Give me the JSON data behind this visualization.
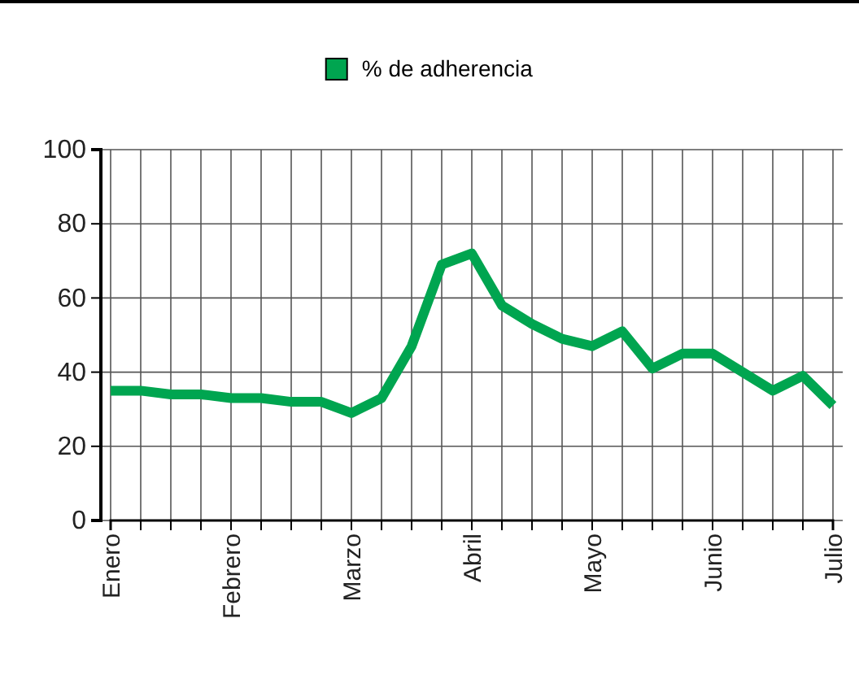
{
  "chart_data": {
    "type": "line",
    "categories": [
      "Enero",
      null,
      null,
      null,
      "Febrero",
      null,
      null,
      null,
      "Marzo",
      null,
      null,
      null,
      "Abril",
      null,
      null,
      null,
      "Mayo",
      null,
      null,
      null,
      "Junio",
      null,
      null,
      null,
      "Julio"
    ],
    "series": [
      {
        "name": "% de adherencia",
        "color": "#00a550",
        "values": [
          35,
          35,
          34,
          34,
          33,
          33,
          32,
          32,
          29,
          33,
          47,
          69,
          72,
          58,
          53,
          49,
          47,
          51,
          41,
          45,
          45,
          40,
          35,
          39,
          31
        ]
      }
    ],
    "ylim": [
      0,
      100
    ],
    "yticks": [
      0,
      20,
      40,
      60,
      80,
      100
    ],
    "grid": true,
    "legend": "top",
    "marker": "none",
    "line_style": "solid"
  }
}
